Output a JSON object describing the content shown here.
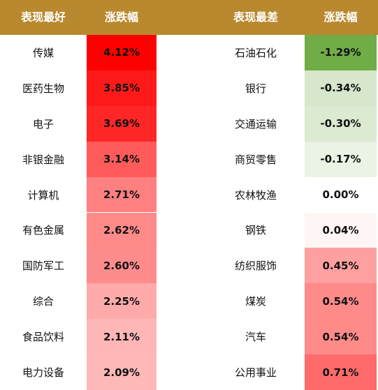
{
  "colors": {
    "header_bg": "#b8892e",
    "header_text": "#ffffff"
  },
  "chart_data": {
    "type": "table",
    "columns": [
      "表现最好",
      "涨跌幅",
      "表现最差",
      "涨跌幅"
    ],
    "best": {
      "header": "表现最好",
      "value_header": "涨跌幅",
      "rows": [
        {
          "sector": "传媒",
          "change": "4.12%",
          "value": 4.12,
          "color": "#ff0000"
        },
        {
          "sector": "医药生物",
          "change": "3.85%",
          "value": 3.85,
          "color": "#ff1a1a"
        },
        {
          "sector": "电子",
          "change": "3.69%",
          "value": 3.69,
          "color": "#ff2626"
        },
        {
          "sector": "非银金融",
          "change": "3.14%",
          "value": 3.14,
          "color": "#ff5b5b"
        },
        {
          "sector": "计算机",
          "change": "2.71%",
          "value": 2.71,
          "color": "#ff8080"
        },
        {
          "sector": "有色金属",
          "change": "2.62%",
          "value": 2.62,
          "color": "#ff8a8a"
        },
        {
          "sector": "国防军工",
          "change": "2.60%",
          "value": 2.6,
          "color": "#ff8c8c"
        },
        {
          "sector": "综合",
          "change": "2.25%",
          "value": 2.25,
          "color": "#ffaaaa"
        },
        {
          "sector": "食品饮料",
          "change": "2.11%",
          "value": 2.11,
          "color": "#ffb6b6"
        },
        {
          "sector": "电力设备",
          "change": "2.09%",
          "value": 2.09,
          "color": "#ffb8b8"
        }
      ]
    },
    "worst": {
      "header": "表现最差",
      "value_header": "涨跌幅",
      "rows": [
        {
          "sector": "石油石化",
          "change": "-1.29%",
          "value": -1.29,
          "color": "#70ad47"
        },
        {
          "sector": "银行",
          "change": "-0.34%",
          "value": -0.34,
          "color": "#d6e7cb"
        },
        {
          "sector": "交通运输",
          "change": "-0.30%",
          "value": -0.3,
          "color": "#dbead1"
        },
        {
          "sector": "商贸零售",
          "change": "-0.17%",
          "value": -0.17,
          "color": "#ebf3e4"
        },
        {
          "sector": "农林牧渔",
          "change": "0.00%",
          "value": 0.0,
          "color": "#ffffff"
        },
        {
          "sector": "钢铁",
          "change": "0.04%",
          "value": 0.04,
          "color": "#fff5f5"
        },
        {
          "sector": "纺织服饰",
          "change": "0.45%",
          "value": 0.45,
          "color": "#ffa0a0"
        },
        {
          "sector": "煤炭",
          "change": "0.54%",
          "value": 0.54,
          "color": "#ff8a8a"
        },
        {
          "sector": "汽车",
          "change": "0.54%",
          "value": 0.54,
          "color": "#ff8a8a"
        },
        {
          "sector": "公用事业",
          "change": "0.71%",
          "value": 0.71,
          "color": "#ff6b6b"
        }
      ]
    }
  }
}
